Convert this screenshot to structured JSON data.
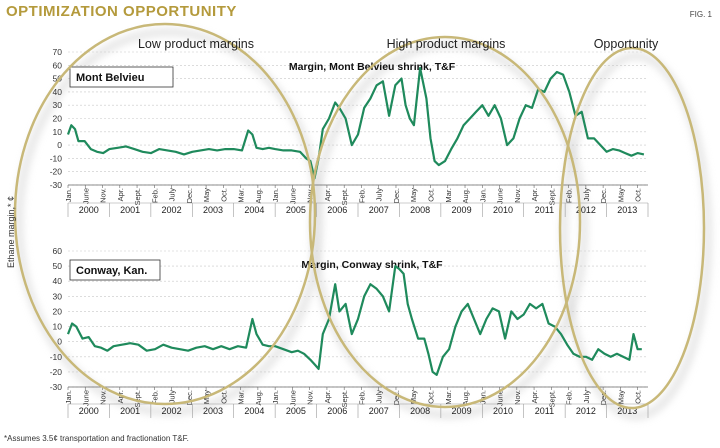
{
  "header": {
    "title": "OPTIMIZATION OPPORTUNITY",
    "fig_label": "FIG. 1"
  },
  "footnote": "*Assumes 3.5¢ transportation and fractionation T&F.",
  "chart_data": [
    {
      "type": "line",
      "panel_label": "Mont Belvieu",
      "title": "Margin, Mont Belvieu shrink, T&F",
      "ylabel": "Ethane margin,* ¢",
      "ylim": [
        -30,
        70
      ],
      "yticks": [
        -30,
        -20,
        -10,
        0,
        10,
        20,
        30,
        40,
        50,
        60,
        70
      ],
      "xlim": [
        2000.0,
        2014.0
      ],
      "month_ticks": [
        "Jan.",
        "June",
        "Nov.",
        "Apr.",
        "Sept.",
        "Feb.",
        "July",
        "Dec.",
        "May",
        "Oct.",
        "Mar.",
        "Aug.",
        "Jan.",
        "June",
        "Nov.",
        "Apr.",
        "Sept.",
        "Feb.",
        "July",
        "Dec.",
        "May",
        "Oct.",
        "Mar.",
        "Aug.",
        "Jan.",
        "June",
        "Nov.",
        "Apr.",
        "Sept.",
        "Feb.",
        "July",
        "Dec.",
        "May",
        "Oct."
      ],
      "year_labels": [
        "2000",
        "2001",
        "2002",
        "2003",
        "2004",
        "2005",
        "2006",
        "2007",
        "2008",
        "2009",
        "2010",
        "2011",
        "2012",
        "2013"
      ],
      "series": [
        {
          "name": "Margin, Mont Belvieu shrink, T&F",
          "x": [
            2000.0,
            2000.08,
            2000.17,
            2000.25,
            2000.4,
            2000.55,
            2000.7,
            2000.85,
            2001.0,
            2001.2,
            2001.4,
            2001.6,
            2001.8,
            2002.0,
            2002.2,
            2002.4,
            2002.6,
            2002.8,
            2003.0,
            2003.2,
            2003.4,
            2003.6,
            2003.8,
            2004.0,
            2004.2,
            2004.35,
            2004.45,
            2004.55,
            2004.7,
            2004.85,
            2005.0,
            2005.2,
            2005.4,
            2005.6,
            2005.75,
            2005.85,
            2005.95,
            2006.05,
            2006.15,
            2006.3,
            2006.45,
            2006.55,
            2006.7,
            2006.85,
            2007.0,
            2007.15,
            2007.3,
            2007.45,
            2007.6,
            2007.75,
            2007.9,
            2008.05,
            2008.15,
            2008.25,
            2008.35,
            2008.5,
            2008.65,
            2008.75,
            2008.85,
            2008.95,
            2009.1,
            2009.25,
            2009.4,
            2009.55,
            2009.7,
            2009.85,
            2010.0,
            2010.15,
            2010.3,
            2010.45,
            2010.6,
            2010.75,
            2010.9,
            2011.05,
            2011.2,
            2011.35,
            2011.5,
            2011.65,
            2011.8,
            2011.95,
            2012.1,
            2012.25,
            2012.4,
            2012.55,
            2012.7,
            2012.85,
            2013.0,
            2013.15,
            2013.3,
            2013.45,
            2013.6,
            2013.75,
            2013.9
          ],
          "y": [
            8,
            15,
            12,
            3,
            3,
            -3,
            -5,
            -6,
            -3,
            -2,
            -1,
            -3,
            -5,
            -6,
            -3,
            -4,
            -5,
            -7,
            -5,
            -4,
            -3,
            -4,
            -3,
            -3,
            -4,
            11,
            8,
            -2,
            -3,
            -2,
            -3,
            -4,
            -4,
            -5,
            -10,
            -12,
            -25,
            -10,
            12,
            20,
            32,
            28,
            20,
            0,
            8,
            28,
            35,
            45,
            48,
            22,
            45,
            50,
            30,
            20,
            15,
            58,
            35,
            5,
            -12,
            -15,
            -12,
            -3,
            5,
            15,
            20,
            25,
            30,
            22,
            30,
            20,
            0,
            5,
            20,
            30,
            28,
            42,
            40,
            50,
            55,
            53,
            40,
            22,
            25,
            5,
            5,
            0,
            -5,
            -3,
            -4,
            -6,
            -8,
            -6,
            -7
          ]
        }
      ]
    },
    {
      "type": "line",
      "panel_label": "Conway, Kan.",
      "title": "Margin, Conway shrink, T&F",
      "ylabel": "Ethane margin,* ¢",
      "ylim": [
        -30,
        60
      ],
      "yticks": [
        -30,
        -20,
        -10,
        0,
        10,
        20,
        30,
        40,
        50,
        60
      ],
      "xlim": [
        2000.0,
        2014.0
      ],
      "month_ticks": [
        "Jan.",
        "June",
        "Nov.",
        "Apr.",
        "Sept.",
        "Feb.",
        "July",
        "Dec.",
        "May",
        "Oct.",
        "Mar.",
        "Aug.",
        "Jan.",
        "June",
        "Nov.",
        "Apr.",
        "Sept.",
        "Feb.",
        "July",
        "Dec.",
        "May",
        "Oct.",
        "Mar.",
        "Aug.",
        "Jan.",
        "June",
        "Nov.",
        "Apr.",
        "Sept.",
        "Feb.",
        "July",
        "Dec.",
        "May",
        "Oct."
      ],
      "year_labels": [
        "2000",
        "2001",
        "2002",
        "2003",
        "2004",
        "2005",
        "2006",
        "2007",
        "2008",
        "2009",
        "2010",
        "2011",
        "2012",
        "2013"
      ],
      "series": [
        {
          "name": "Margin, Conway shrink, T&F",
          "x": [
            2000.0,
            2000.1,
            2000.2,
            2000.35,
            2000.5,
            2000.65,
            2000.8,
            2000.95,
            2001.1,
            2001.3,
            2001.5,
            2001.7,
            2001.9,
            2002.1,
            2002.3,
            2002.5,
            2002.7,
            2002.9,
            2003.1,
            2003.3,
            2003.5,
            2003.7,
            2003.9,
            2004.1,
            2004.3,
            2004.45,
            2004.55,
            2004.7,
            2004.85,
            2005.0,
            2005.2,
            2005.4,
            2005.55,
            2005.7,
            2005.85,
            2005.95,
            2006.05,
            2006.15,
            2006.3,
            2006.45,
            2006.55,
            2006.7,
            2006.85,
            2007.0,
            2007.15,
            2007.3,
            2007.45,
            2007.6,
            2007.75,
            2007.9,
            2008.0,
            2008.1,
            2008.2,
            2008.3,
            2008.45,
            2008.6,
            2008.7,
            2008.8,
            2008.9,
            2009.05,
            2009.2,
            2009.35,
            2009.5,
            2009.65,
            2009.8,
            2009.95,
            2010.1,
            2010.25,
            2010.4,
            2010.55,
            2010.7,
            2010.85,
            2011.0,
            2011.15,
            2011.3,
            2011.45,
            2011.6,
            2011.75,
            2011.9,
            2012.05,
            2012.2,
            2012.35,
            2012.5,
            2012.65,
            2012.8,
            2012.95,
            2013.1,
            2013.25,
            2013.4,
            2013.55,
            2013.65,
            2013.75,
            2013.85
          ],
          "y": [
            5,
            12,
            10,
            2,
            3,
            -3,
            -4,
            -6,
            -3,
            -2,
            -1,
            -2,
            -6,
            -5,
            -2,
            -4,
            -5,
            -6,
            -4,
            -3,
            -5,
            -3,
            -5,
            -3,
            -4,
            15,
            5,
            -2,
            -3,
            -3,
            -5,
            -7,
            -6,
            -8,
            -12,
            -15,
            -18,
            5,
            15,
            38,
            20,
            25,
            5,
            15,
            30,
            38,
            35,
            30,
            20,
            50,
            48,
            45,
            25,
            15,
            2,
            2,
            -8,
            -20,
            -22,
            -10,
            -5,
            10,
            20,
            25,
            15,
            5,
            15,
            22,
            20,
            2,
            20,
            15,
            18,
            25,
            22,
            25,
            12,
            10,
            5,
            -2,
            -8,
            -10,
            -10,
            -12,
            -5,
            -8,
            -10,
            -8,
            -10,
            -12,
            5,
            -5,
            -5
          ]
        }
      ]
    }
  ],
  "annotations": {
    "phase_labels": [
      "Low product margins",
      "High product margins",
      "Opportunity"
    ]
  },
  "colors": {
    "line": "#1f8a5c",
    "ellipse": "#c8b878",
    "title": "#b49a3c",
    "grid": "#c8c8c8"
  }
}
